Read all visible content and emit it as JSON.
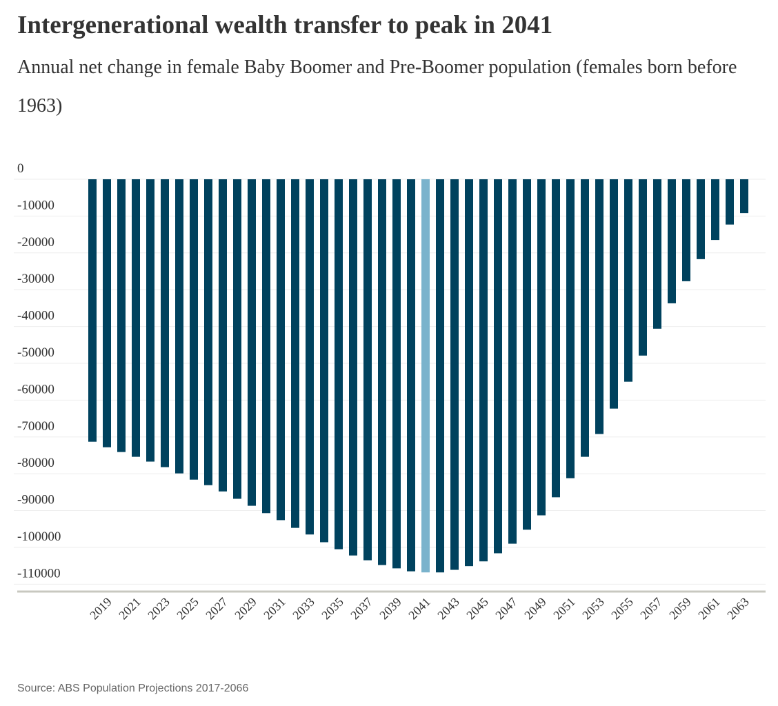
{
  "chart_data": {
    "type": "bar",
    "title": "Intergenerational wealth transfer to peak in 2041",
    "subtitle": "Annual net change in female Baby Boomer and Pre-Boomer population (females born before 1963)",
    "source": "Source: ABS Population Projections 2017-2066",
    "categories": [
      null,
      "2019",
      null,
      "2021",
      null,
      "2023",
      null,
      "2025",
      null,
      "2027",
      null,
      "2029",
      null,
      "2031",
      null,
      "2033",
      null,
      "2035",
      null,
      "2037",
      null,
      "2039",
      null,
      "2041",
      null,
      "2043",
      null,
      "2045",
      null,
      "2047",
      null,
      "2049",
      null,
      "2051",
      null,
      "2053",
      null,
      "2055",
      null,
      "2057",
      null,
      "2059",
      null,
      "2061",
      null,
      "2063"
    ],
    "values": [
      -71300,
      -72800,
      -74100,
      -75400,
      -76700,
      -78200,
      -79900,
      -81600,
      -83100,
      -84800,
      -86800,
      -88700,
      -90700,
      -92600,
      -94700,
      -96500,
      -98600,
      -100500,
      -102200,
      -103500,
      -104800,
      -105700,
      -106500,
      -106800,
      -106800,
      -106100,
      -105100,
      -103800,
      -101600,
      -99000,
      -95200,
      -91300,
      -86400,
      -81200,
      -75400,
      -69200,
      -62300,
      -55000,
      -47900,
      -40600,
      -33700,
      -27700,
      -21700,
      -16500,
      -12300,
      -9200
    ],
    "colors": [
      "#00425e",
      "#00425e",
      "#00425e",
      "#00425e",
      "#00425e",
      "#00425e",
      "#00425e",
      "#00425e",
      "#00425e",
      "#00425e",
      "#00425e",
      "#00425e",
      "#00425e",
      "#00425e",
      "#00425e",
      "#00425e",
      "#00425e",
      "#00425e",
      "#00425e",
      "#00425e",
      "#00425e",
      "#00425e",
      "#00425e",
      "#7ab3cc",
      "#00425e",
      "#00425e",
      "#00425e",
      "#00425e",
      "#00425e",
      "#00425e",
      "#00425e",
      "#00425e",
      "#00425e",
      "#00425e",
      "#00425e",
      "#00425e",
      "#00425e",
      "#00425e",
      "#00425e",
      "#00425e",
      "#00425e",
      "#00425e",
      "#00425e",
      "#00425e",
      "#00425e",
      "#00425e"
    ],
    "ylim": [
      -112000,
      0
    ],
    "yticks": [
      0,
      -10000,
      -20000,
      -30000,
      -40000,
      -50000,
      -60000,
      -70000,
      -80000,
      -90000,
      -100000,
      -110000
    ],
    "grid": true
  }
}
